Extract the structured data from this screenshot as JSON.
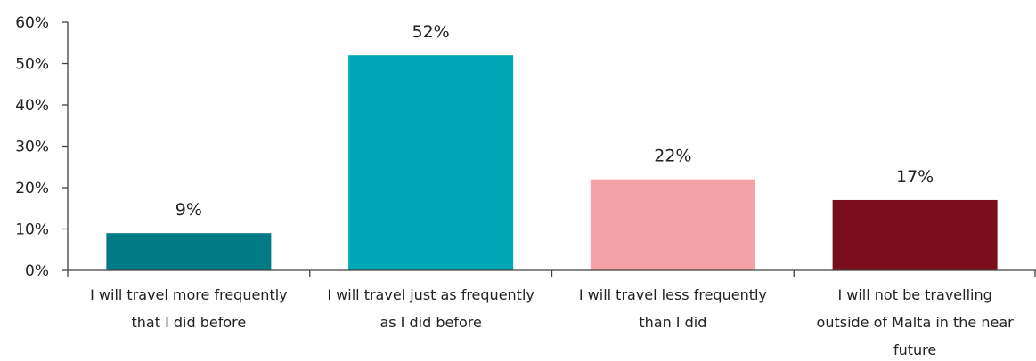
{
  "chart_data": {
    "type": "bar",
    "categories": [
      [
        "I will travel more frequently",
        "that I did before"
      ],
      [
        "I will travel just as frequently",
        "as I did before"
      ],
      [
        "I will travel less frequently",
        "than I did"
      ],
      [
        "I will not be travelling",
        "outside of Malta in the near",
        "future"
      ]
    ],
    "values": [
      9,
      52,
      22,
      17
    ],
    "value_labels": [
      "9%",
      "52%",
      "22%",
      "17%"
    ],
    "colors": [
      "#007B85",
      "#00A8B5",
      "#F4A1A8",
      "#7B0E1C"
    ],
    "ylim": [
      0,
      60
    ],
    "yticks": [
      0,
      10,
      20,
      30,
      40,
      50,
      60
    ],
    "ytick_labels": [
      "0%",
      "10%",
      "20%",
      "30%",
      "40%",
      "50%",
      "60%"
    ],
    "grid": false,
    "legend": "none",
    "title": "",
    "xlabel": "",
    "ylabel": ""
  }
}
